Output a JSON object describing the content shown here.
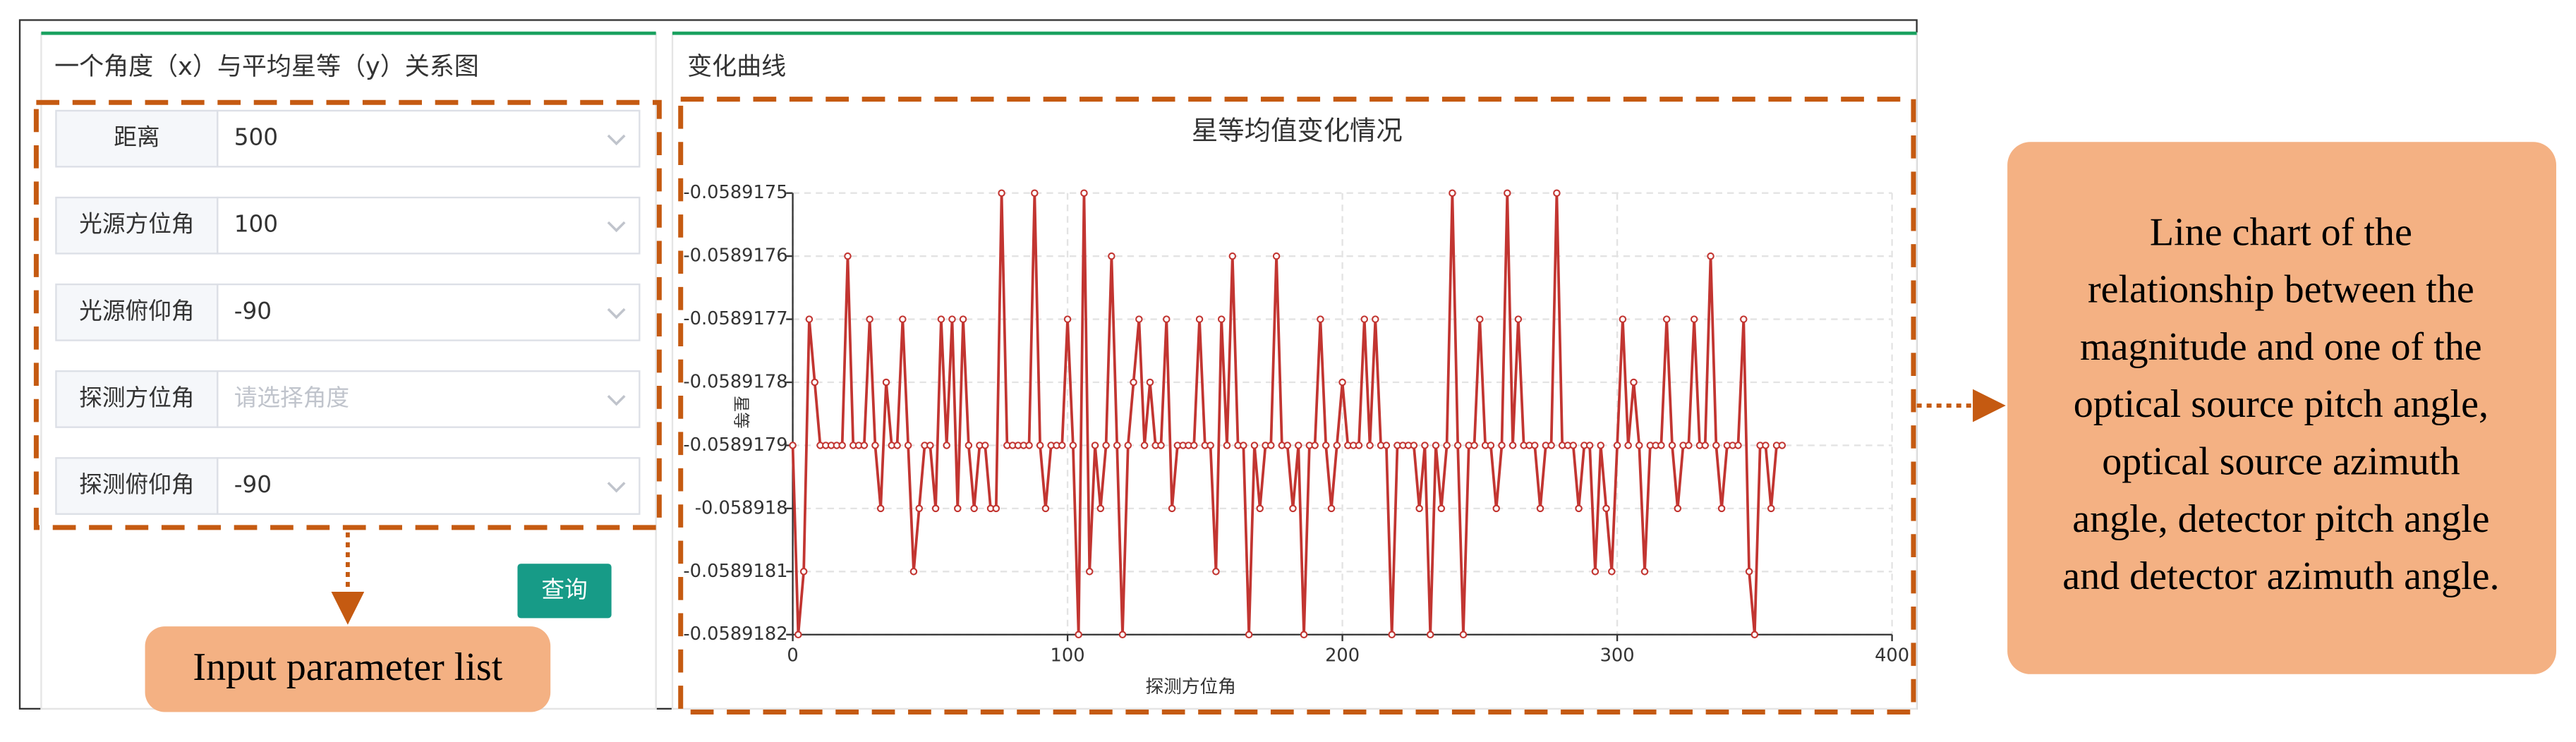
{
  "left_panel": {
    "title": "一个角度（x）与平均星等（y）关系图",
    "fields": [
      {
        "label": "距离",
        "value": "500"
      },
      {
        "label": "光源方位角",
        "value": "100"
      },
      {
        "label": "光源俯仰角",
        "value": "-90"
      },
      {
        "label": "探测方位角",
        "placeholder": "请选择角度"
      },
      {
        "label": "探测俯仰角",
        "value": "-90"
      }
    ],
    "button": "查询"
  },
  "right_panel": {
    "title": "变化曲线"
  },
  "annotations": {
    "input": "Input parameter list",
    "chart": [
      "Line chart of the",
      "relationship between the",
      "magnitude and one of the",
      "optical source pitch angle,",
      "optical source azimuth",
      "angle, detector pitch angle",
      "and detector azimuth angle."
    ]
  },
  "chart_data": {
    "type": "line",
    "title": "星等均值变化情况",
    "x_label": "探测方位角",
    "y_label": "星等",
    "xlim": [
      0,
      400
    ],
    "xticks": [
      0,
      100,
      200,
      300,
      400
    ],
    "ylim": [
      -0.0589182,
      -0.0589175
    ],
    "yticks": [
      -0.0589182,
      -0.0589181,
      -0.058918,
      -0.0589179,
      -0.0589178,
      -0.0589177,
      -0.0589176,
      -0.0589175
    ],
    "grid": true,
    "x": [
      0,
      2,
      4,
      6,
      8,
      10,
      12,
      14,
      16,
      18,
      20,
      22,
      24,
      26,
      28,
      30,
      32,
      34,
      36,
      38,
      40,
      42,
      44,
      46,
      48,
      50,
      52,
      54,
      56,
      58,
      60,
      62,
      64,
      66,
      68,
      70,
      72,
      74,
      76,
      78,
      80,
      82,
      84,
      86,
      88,
      90,
      92,
      94,
      96,
      98,
      100,
      102,
      104,
      106,
      108,
      110,
      112,
      114,
      116,
      118,
      120,
      122,
      124,
      126,
      128,
      130,
      132,
      134,
      136,
      138,
      140,
      142,
      144,
      146,
      148,
      150,
      152,
      154,
      156,
      158,
      160,
      162,
      164,
      166,
      168,
      170,
      172,
      174,
      176,
      178,
      180,
      182,
      184,
      186,
      188,
      190,
      192,
      194,
      196,
      198,
      200,
      202,
      204,
      206,
      208,
      210,
      212,
      214,
      216,
      218,
      220,
      222,
      224,
      226,
      228,
      230,
      232,
      234,
      236,
      238,
      240,
      242,
      244,
      246,
      248,
      250,
      252,
      254,
      256,
      258,
      260,
      262,
      264,
      266,
      268,
      270,
      272,
      274,
      276,
      278,
      280,
      282,
      284,
      286,
      288,
      290,
      292,
      294,
      296,
      298,
      300,
      302,
      304,
      306,
      308,
      310,
      312,
      314,
      316,
      318,
      320,
      322,
      324,
      326,
      328,
      330,
      332,
      334,
      336,
      338,
      340,
      342,
      344,
      346,
      348,
      350,
      352,
      354,
      356,
      358,
      360
    ],
    "series": [
      {
        "name": "星等",
        "color": "#c23531",
        "values": [
          -0.0589179,
          -0.0589182,
          -0.0589181,
          -0.0589177,
          -0.0589178,
          -0.0589179,
          -0.0589179,
          -0.0589179,
          -0.0589179,
          -0.0589179,
          -0.0589176,
          -0.0589179,
          -0.0589179,
          -0.0589179,
          -0.0589177,
          -0.0589179,
          -0.058918,
          -0.0589178,
          -0.0589179,
          -0.0589179,
          -0.0589177,
          -0.0589179,
          -0.0589181,
          -0.058918,
          -0.0589179,
          -0.0589179,
          -0.058918,
          -0.0589177,
          -0.0589179,
          -0.0589177,
          -0.058918,
          -0.0589177,
          -0.0589179,
          -0.058918,
          -0.0589179,
          -0.0589179,
          -0.058918,
          -0.058918,
          -0.0589175,
          -0.0589179,
          -0.0589179,
          -0.0589179,
          -0.0589179,
          -0.0589179,
          -0.0589175,
          -0.0589179,
          -0.058918,
          -0.0589179,
          -0.0589179,
          -0.0589179,
          -0.0589177,
          -0.0589179,
          -0.0589182,
          -0.0589175,
          -0.0589181,
          -0.0589179,
          -0.058918,
          -0.0589179,
          -0.0589176,
          -0.0589179,
          -0.0589182,
          -0.0589179,
          -0.0589178,
          -0.0589177,
          -0.0589179,
          -0.0589178,
          -0.0589179,
          -0.0589179,
          -0.0589177,
          -0.058918,
          -0.0589179,
          -0.0589179,
          -0.0589179,
          -0.0589179,
          -0.0589177,
          -0.0589179,
          -0.0589179,
          -0.0589181,
          -0.0589177,
          -0.0589179,
          -0.0589176,
          -0.0589179,
          -0.0589179,
          -0.0589182,
          -0.0589179,
          -0.058918,
          -0.0589179,
          -0.0589179,
          -0.0589176,
          -0.0589179,
          -0.0589179,
          -0.058918,
          -0.0589179,
          -0.0589182,
          -0.0589179,
          -0.0589179,
          -0.0589177,
          -0.0589179,
          -0.058918,
          -0.0589179,
          -0.0589178,
          -0.0589179,
          -0.0589179,
          -0.0589179,
          -0.0589177,
          -0.0589179,
          -0.0589177,
          -0.0589179,
          -0.0589179,
          -0.0589182,
          -0.0589179,
          -0.0589179,
          -0.0589179,
          -0.0589179,
          -0.058918,
          -0.0589179,
          -0.0589182,
          -0.0589179,
          -0.058918,
          -0.0589179,
          -0.0589175,
          -0.0589179,
          -0.0589182,
          -0.0589179,
          -0.0589179,
          -0.0589177,
          -0.0589179,
          -0.0589179,
          -0.058918,
          -0.0589179,
          -0.0589175,
          -0.0589179,
          -0.0589177,
          -0.0589179,
          -0.0589179,
          -0.0589179,
          -0.058918,
          -0.0589179,
          -0.0589179,
          -0.0589175,
          -0.0589179,
          -0.0589179,
          -0.0589179,
          -0.058918,
          -0.0589179,
          -0.0589179,
          -0.0589181,
          -0.0589179,
          -0.058918,
          -0.0589181,
          -0.0589179,
          -0.0589177,
          -0.0589179,
          -0.0589178,
          -0.0589179,
          -0.0589181,
          -0.0589179,
          -0.0589179,
          -0.0589179,
          -0.0589177,
          -0.0589179,
          -0.058918,
          -0.0589179,
          -0.0589179,
          -0.0589177,
          -0.0589179,
          -0.0589179,
          -0.0589176,
          -0.0589179,
          -0.058918,
          -0.0589179,
          -0.0589179,
          -0.0589179,
          -0.0589177,
          -0.0589181,
          -0.0589182,
          -0.0589179,
          -0.0589179,
          -0.058918,
          -0.0589179,
          -0.0589179
        ]
      }
    ]
  }
}
